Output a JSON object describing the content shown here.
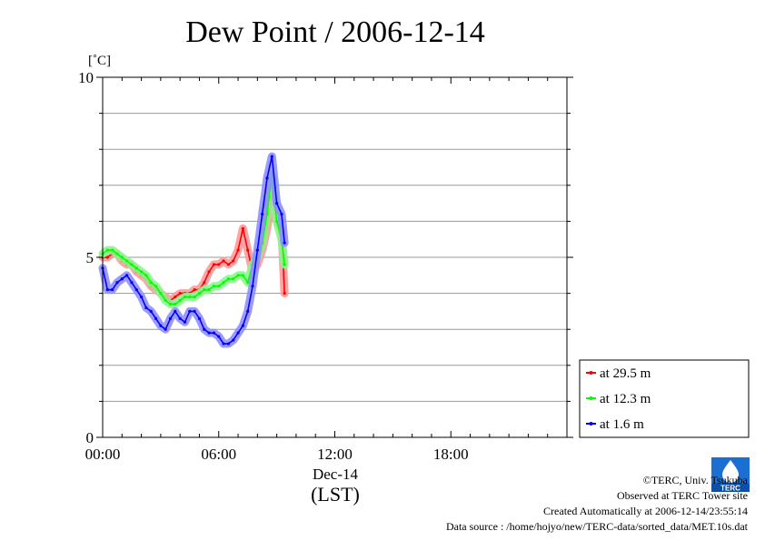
{
  "chart_data": {
    "type": "line",
    "title": "Dew Point / 2006-12-14",
    "ylabel": "[˚C]",
    "xlabel_date": "Dec-14",
    "xlabel_unit": "(LST)",
    "ylim": [
      0,
      10
    ],
    "yticks": [
      0,
      5,
      10
    ],
    "xlim_hours": [
      0,
      24
    ],
    "xticks": [
      {
        "hour": 0,
        "label": "00:00"
      },
      {
        "hour": 6,
        "label": "06:00"
      },
      {
        "hour": 12,
        "label": "12:00"
      },
      {
        "hour": 18,
        "label": "18:00"
      }
    ],
    "grid": true,
    "legend_position": "bottom-right",
    "series": [
      {
        "name": "at 29.5 m",
        "color": "#ff0000",
        "x_hours": [
          0.0,
          0.25,
          0.5,
          0.75,
          1.0,
          1.25,
          1.5,
          1.75,
          2.0,
          2.25,
          2.5,
          2.75,
          3.0,
          3.25,
          3.5,
          3.75,
          4.0,
          4.25,
          4.5,
          4.75,
          5.0,
          5.25,
          5.5,
          5.75,
          6.0,
          6.25,
          6.5,
          6.75,
          7.0,
          7.25,
          7.5,
          7.75,
          8.0,
          8.25,
          8.5,
          8.75,
          9.0,
          9.25,
          9.4
        ],
        "values": [
          5.0,
          5.0,
          5.1,
          5.1,
          4.9,
          4.8,
          4.8,
          4.6,
          4.5,
          4.4,
          4.2,
          4.1,
          4.0,
          3.9,
          3.8,
          3.9,
          4.0,
          4.0,
          4.0,
          4.1,
          4.1,
          4.3,
          4.6,
          4.8,
          4.8,
          4.9,
          4.8,
          4.9,
          5.2,
          5.8,
          5.2,
          4.6,
          4.8,
          5.2,
          5.8,
          6.7,
          6.0,
          5.8,
          4.0
        ]
      },
      {
        "name": "at 12.3 m",
        "color": "#00ff00",
        "x_hours": [
          0.0,
          0.25,
          0.5,
          0.75,
          1.0,
          1.25,
          1.5,
          1.75,
          2.0,
          2.25,
          2.5,
          2.75,
          3.0,
          3.25,
          3.5,
          3.75,
          4.0,
          4.25,
          4.5,
          4.75,
          5.0,
          5.25,
          5.5,
          5.75,
          6.0,
          6.25,
          6.5,
          6.75,
          7.0,
          7.25,
          7.5,
          7.75,
          8.0,
          8.25,
          8.5,
          8.75,
          9.0,
          9.25,
          9.4
        ],
        "values": [
          5.1,
          5.2,
          5.2,
          5.1,
          5.0,
          4.9,
          4.8,
          4.7,
          4.6,
          4.5,
          4.3,
          4.2,
          4.0,
          3.8,
          3.7,
          3.7,
          3.8,
          3.9,
          3.9,
          3.9,
          4.0,
          4.1,
          4.1,
          4.2,
          4.2,
          4.3,
          4.4,
          4.4,
          4.5,
          4.5,
          4.3,
          4.8,
          5.0,
          5.4,
          6.2,
          7.3,
          6.0,
          5.5,
          4.8
        ]
      },
      {
        "name": "at 1.6 m",
        "color": "#0000ff",
        "x_hours": [
          0.0,
          0.25,
          0.5,
          0.75,
          1.0,
          1.25,
          1.5,
          1.75,
          2.0,
          2.25,
          2.5,
          2.75,
          3.0,
          3.25,
          3.5,
          3.75,
          4.0,
          4.25,
          4.5,
          4.75,
          5.0,
          5.25,
          5.5,
          5.75,
          6.0,
          6.25,
          6.5,
          6.75,
          7.0,
          7.25,
          7.5,
          7.75,
          8.0,
          8.25,
          8.5,
          8.75,
          9.0,
          9.25,
          9.4
        ],
        "values": [
          4.7,
          4.1,
          4.1,
          4.3,
          4.4,
          4.5,
          4.3,
          4.1,
          3.9,
          3.6,
          3.5,
          3.3,
          3.1,
          3.0,
          3.3,
          3.5,
          3.3,
          3.2,
          3.5,
          3.5,
          3.3,
          3.0,
          2.9,
          2.9,
          2.8,
          2.6,
          2.6,
          2.7,
          2.9,
          3.1,
          3.5,
          4.2,
          5.2,
          6.2,
          7.2,
          7.8,
          6.5,
          6.2,
          5.4
        ]
      }
    ]
  },
  "footer": {
    "copyright": "©TERC, Univ. Tsukuba",
    "observed": "Observed at TERC Tower site",
    "created": "Created Automatically at 2006-12-14/23:55:14",
    "source": "Data source : /home/hojyo/new/TERC-data/sorted_data/MET.10s.dat",
    "logo_text": "TERC"
  }
}
